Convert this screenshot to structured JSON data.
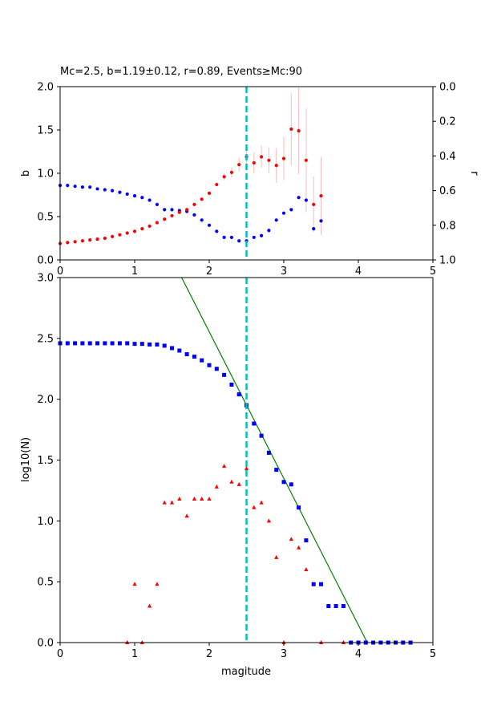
{
  "colors": {
    "red_series": "#ff0000",
    "blue_series": "#0000ff",
    "errorbar": "#ffbbbb",
    "mc_line": "#00bfbf",
    "fit_line": "#008000",
    "axis": "#000000"
  },
  "chart_data": [
    {
      "type": "scatter",
      "title": "Mc=2.5, b=1.19±0.12, r=0.89, Events≥Mc:90",
      "xlabel": "",
      "ylabel": "b",
      "ylabel_right": "r",
      "xlim": [
        0,
        5
      ],
      "ylim": [
        0,
        2.0
      ],
      "ylim_right": [
        1.0,
        0.0
      ],
      "x_ticks": [
        0,
        1,
        2,
        3,
        4,
        5
      ],
      "x_tick_labels": [
        "0",
        "1",
        "2",
        "3",
        "4",
        "5"
      ],
      "y_ticks": [
        0,
        0.5,
        1.0,
        1.5,
        2.0
      ],
      "y_tick_labels": [
        "0.0",
        "0.5",
        "1.0",
        "1.5",
        "2.0"
      ],
      "y_right_ticks": [
        0.0,
        0.2,
        0.4,
        0.6,
        0.8,
        1.0
      ],
      "y_right_tick_labels": [
        "0.0",
        "0.2",
        "0.4",
        "0.6",
        "0.8",
        "1.0"
      ],
      "vline_x": 2.5,
      "series": [
        {
          "name": "b-value",
          "axis": "left",
          "x": [
            0.0,
            0.1,
            0.2,
            0.3,
            0.4,
            0.5,
            0.6,
            0.7,
            0.8,
            0.9,
            1.0,
            1.1,
            1.2,
            1.3,
            1.4,
            1.5,
            1.6,
            1.7,
            1.8,
            1.9,
            2.0,
            2.1,
            2.2,
            2.3,
            2.4,
            2.5,
            2.6,
            2.7,
            2.8,
            2.9,
            3.0,
            3.1,
            3.2,
            3.3,
            3.4,
            3.5
          ],
          "y": [
            0.19,
            0.2,
            0.21,
            0.22,
            0.23,
            0.24,
            0.25,
            0.27,
            0.29,
            0.31,
            0.33,
            0.36,
            0.39,
            0.43,
            0.47,
            0.51,
            0.55,
            0.58,
            0.64,
            0.7,
            0.77,
            0.87,
            0.96,
            1.01,
            1.1,
            1.19,
            1.12,
            1.19,
            1.15,
            1.09,
            1.17,
            1.51,
            1.49,
            1.15,
            0.64,
            0.74
          ],
          "yerr": [
            0,
            0,
            0,
            0,
            0,
            0,
            0,
            0,
            0,
            0,
            0,
            0,
            0,
            0,
            0,
            0,
            0,
            0,
            0,
            0,
            0,
            0,
            0.04,
            0.06,
            0.08,
            0.12,
            0.12,
            0.13,
            0.15,
            0.2,
            0.25,
            0.42,
            0.5,
            0.6,
            0.32,
            0.45
          ]
        },
        {
          "name": "r",
          "axis": "right",
          "x": [
            0.0,
            0.1,
            0.2,
            0.3,
            0.4,
            0.5,
            0.6,
            0.7,
            0.8,
            0.9,
            1.0,
            1.1,
            1.2,
            1.3,
            1.4,
            1.5,
            1.6,
            1.7,
            1.8,
            1.9,
            2.0,
            2.1,
            2.2,
            2.3,
            2.4,
            2.5,
            2.6,
            2.7,
            2.8,
            2.9,
            3.0,
            3.1,
            3.2,
            3.3,
            3.4,
            3.5
          ],
          "y": [
            0.57,
            0.57,
            0.575,
            0.58,
            0.58,
            0.59,
            0.595,
            0.6,
            0.61,
            0.62,
            0.63,
            0.64,
            0.655,
            0.68,
            0.71,
            0.71,
            0.715,
            0.72,
            0.74,
            0.77,
            0.8,
            0.835,
            0.87,
            0.87,
            0.89,
            0.89,
            0.87,
            0.86,
            0.83,
            0.77,
            0.73,
            0.71,
            0.64,
            0.655,
            0.82,
            0.775
          ]
        }
      ]
    },
    {
      "type": "scatter",
      "title": "",
      "xlabel": "magitude",
      "ylabel": "log10(N)",
      "xlim": [
        0,
        5
      ],
      "ylim": [
        0,
        3.0
      ],
      "x_ticks": [
        0,
        1,
        2,
        3,
        4,
        5
      ],
      "x_tick_labels": [
        "0",
        "1",
        "2",
        "3",
        "4",
        "5"
      ],
      "y_ticks": [
        0,
        0.5,
        1.0,
        1.5,
        2.0,
        2.5,
        3.0
      ],
      "y_tick_labels": [
        "0.0",
        "0.5",
        "1.0",
        "1.5",
        "2.0",
        "2.5",
        "3.0"
      ],
      "vline_x": 2.5,
      "fit_line": {
        "x": [
          1.63,
          4.12
        ],
        "y": [
          3.0,
          0.0
        ]
      },
      "series": [
        {
          "name": "cumulative log10(N)",
          "marker": "square",
          "x": [
            0.0,
            0.1,
            0.2,
            0.3,
            0.4,
            0.5,
            0.6,
            0.7,
            0.8,
            0.9,
            1.0,
            1.1,
            1.2,
            1.3,
            1.4,
            1.5,
            1.6,
            1.7,
            1.8,
            1.9,
            2.0,
            2.1,
            2.2,
            2.3,
            2.4,
            2.5,
            2.6,
            2.7,
            2.8,
            2.9,
            3.0,
            3.1,
            3.2,
            3.3,
            3.4,
            3.5,
            3.6,
            3.7,
            3.8,
            3.9,
            4.0,
            4.1,
            4.2,
            4.3,
            4.4,
            4.5,
            4.6,
            4.7
          ],
          "y": [
            2.46,
            2.46,
            2.46,
            2.46,
            2.46,
            2.46,
            2.46,
            2.46,
            2.46,
            2.46,
            2.455,
            2.455,
            2.45,
            2.45,
            2.44,
            2.42,
            2.4,
            2.37,
            2.35,
            2.32,
            2.28,
            2.25,
            2.2,
            2.12,
            2.04,
            1.95,
            1.8,
            1.7,
            1.56,
            1.42,
            1.32,
            1.3,
            1.11,
            0.84,
            0.48,
            0.48,
            0.3,
            0.3,
            0.3,
            0.0,
            0.0,
            0.0,
            0.0,
            0.0,
            0.0,
            0.0,
            0.0,
            0.0
          ]
        },
        {
          "name": "non-cumulative log10(N)",
          "marker": "triangle",
          "x": [
            0.9,
            1.0,
            1.1,
            1.2,
            1.3,
            1.4,
            1.5,
            1.6,
            1.7,
            1.8,
            1.9,
            2.0,
            2.1,
            2.2,
            2.3,
            2.4,
            2.5,
            2.6,
            2.7,
            2.8,
            2.9,
            3.0,
            3.1,
            3.2,
            3.3,
            3.5,
            3.8
          ],
          "y": [
            0.0,
            0.48,
            0.0,
            0.3,
            0.48,
            1.15,
            1.15,
            1.18,
            1.04,
            1.18,
            1.18,
            1.18,
            1.28,
            1.45,
            1.32,
            1.3,
            1.43,
            1.11,
            1.15,
            1.0,
            0.7,
            0.0,
            0.85,
            0.78,
            0.6,
            0.0,
            0.0
          ]
        }
      ]
    }
  ]
}
